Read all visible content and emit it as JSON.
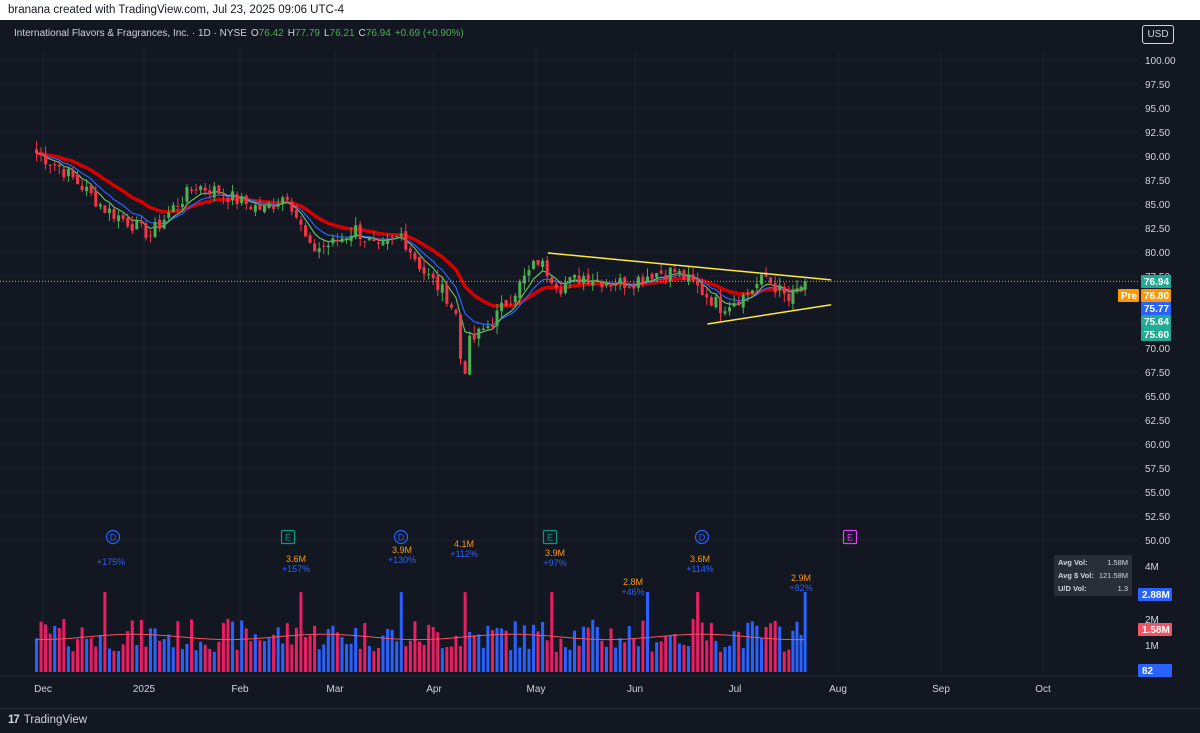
{
  "top_bar": {
    "text": "branana created with TradingView.com, Jul 23, 2025 09:06 UTC-4"
  },
  "footer": {
    "logo_mark": "17",
    "logo_text": "TradingView"
  },
  "currency_button": "USD",
  "header": {
    "symbol": "International Flavors & Fragrances, Inc. · 1D · NYSE",
    "o_label": "O",
    "o_value": "76.42",
    "h_label": "H",
    "h_value": "77.79",
    "l_label": "L",
    "l_value": "76.21",
    "c_label": "C",
    "c_value": "76.94",
    "change": "+0.69 (+0.90%)"
  },
  "price_axis": {
    "ticks": [
      "100.00",
      "97.50",
      "95.00",
      "92.50",
      "90.00",
      "87.50",
      "85.00",
      "82.50",
      "80.00",
      "77.50",
      "72.50",
      "70.00",
      "67.50",
      "65.00",
      "62.50",
      "60.00",
      "57.50",
      "55.00",
      "52.50",
      "50.00"
    ],
    "labels": [
      {
        "text": "76.94",
        "color": "#22ab94",
        "value": 76.94
      },
      {
        "text": "76.80",
        "color": "#ff9800",
        "value": 76.8,
        "tag": "Pre"
      },
      {
        "text": "75.77",
        "color": "#2962ff",
        "value": 75.77
      },
      {
        "text": "75.64",
        "color": "#22ab94",
        "value": 75.64
      },
      {
        "text": "75.60",
        "color": "#22ab94",
        "value": 75.6
      }
    ]
  },
  "volume_axis": {
    "ticks": [
      "4M",
      "2M",
      "1M"
    ],
    "labels": [
      {
        "text": "2.88M",
        "color": "#2962ff"
      },
      {
        "text": "1.58M",
        "color": "#f7525f"
      },
      {
        "text": "82",
        "color": "#2962ff"
      }
    ]
  },
  "time_axis": [
    "Dec",
    "2025",
    "Feb",
    "Mar",
    "Apr",
    "May",
    "Jun",
    "Jul",
    "Aug",
    "Sep",
    "Oct"
  ],
  "stats_box": {
    "rows": [
      {
        "label": "Avg Vol:",
        "value": "1.58M"
      },
      {
        "label": "Avg $ Vol:",
        "value": "121.58M"
      },
      {
        "label": "U/D Vol:",
        "value": "1.3"
      }
    ]
  },
  "events": [
    {
      "type": "D",
      "color": "#2962ff",
      "month": "Dec"
    },
    {
      "type": "E",
      "color": "#089981",
      "month": "Feb"
    },
    {
      "type": "D",
      "color": "#2962ff",
      "month": "Mar"
    },
    {
      "type": "E",
      "color": "#089981",
      "month": "May"
    },
    {
      "type": "D",
      "color": "#2962ff",
      "month": "Jun"
    },
    {
      "type": "E",
      "color": "#e040fb",
      "month": "Aug"
    }
  ],
  "volume_annotations": [
    {
      "vol": "",
      "pct": "+175%"
    },
    {
      "vol": "3.6M",
      "pct": "+157%"
    },
    {
      "vol": "3.9M",
      "pct": "+130%"
    },
    {
      "vol": "4.1M",
      "pct": "+112%"
    },
    {
      "vol": "3.9M",
      "pct": "+97%"
    },
    {
      "vol": "2.8M",
      "pct": "+46%"
    },
    {
      "vol": "3.6M",
      "pct": "+114%"
    },
    {
      "vol": "2.9M",
      "pct": "+82%"
    }
  ],
  "colors": {
    "up": "#4caf50",
    "down": "#f23645",
    "background": "#131722",
    "grid": "#1e222d",
    "trendline": "#ffeb3b",
    "ma_red": "#d50000",
    "ma_blue": "#2962ff",
    "ma_green": "#66bb6a",
    "vol_up": "#2962ff",
    "vol_down": "#e91e63",
    "vol_ma": "#f7525f"
  },
  "chart_data": {
    "type": "candlestick",
    "title": "International Flavors & Fragrances, Inc. · 1D · NYSE",
    "ylim": [
      50,
      100
    ],
    "last_close": 76.94,
    "weekly_closes": [
      {
        "x": "2024-11-29",
        "close": 90.3
      },
      {
        "x": "2024-12-06",
        "close": 88.9
      },
      {
        "x": "2024-12-13",
        "close": 86.8
      },
      {
        "x": "2024-12-20",
        "close": 84.5
      },
      {
        "x": "2024-12-27",
        "close": 83.2
      },
      {
        "x": "2025-01-03",
        "close": 81.8
      },
      {
        "x": "2025-01-10",
        "close": 84.6
      },
      {
        "x": "2025-01-17",
        "close": 86.9
      },
      {
        "x": "2025-01-24",
        "close": 86.3
      },
      {
        "x": "2025-01-31",
        "close": 85.2
      },
      {
        "x": "2025-02-07",
        "close": 84.4
      },
      {
        "x": "2025-02-14",
        "close": 86.1
      },
      {
        "x": "2025-02-21",
        "close": 80.2
      },
      {
        "x": "2025-02-28",
        "close": 80.9
      },
      {
        "x": "2025-03-07",
        "close": 82.4
      },
      {
        "x": "2025-03-14",
        "close": 80.1
      },
      {
        "x": "2025-03-21",
        "close": 81.8
      },
      {
        "x": "2025-03-28",
        "close": 77.9
      },
      {
        "x": "2025-04-04",
        "close": 75.4
      },
      {
        "x": "2025-04-11",
        "close": 70.5
      },
      {
        "x": "2025-04-18",
        "close": 72.8
      },
      {
        "x": "2025-04-25",
        "close": 76.0
      },
      {
        "x": "2025-05-02",
        "close": 79.1
      },
      {
        "x": "2025-05-09",
        "close": 76.4
      },
      {
        "x": "2025-05-16",
        "close": 77.5
      },
      {
        "x": "2025-05-23",
        "close": 76.9
      },
      {
        "x": "2025-05-30",
        "close": 76.8
      },
      {
        "x": "2025-06-06",
        "close": 77.8
      },
      {
        "x": "2025-06-13",
        "close": 78.0
      },
      {
        "x": "2025-06-20",
        "close": 76.3
      },
      {
        "x": "2025-06-27",
        "close": 74.3
      },
      {
        "x": "2025-07-04",
        "close": 75.4
      },
      {
        "x": "2025-07-11",
        "close": 77.4
      },
      {
        "x": "2025-07-18",
        "close": 74.9
      },
      {
        "x": "2025-07-23",
        "close": 76.94
      }
    ],
    "trendlines": [
      {
        "from": {
          "x": "2025-05-05",
          "y": 79.9
        },
        "to": {
          "x": "2025-07-31",
          "y": 77.1
        }
      },
      {
        "from": {
          "x": "2025-06-23",
          "y": 72.5
        },
        "to": {
          "x": "2025-07-31",
          "y": 74.5
        }
      }
    ],
    "volume_ylim": [
      0,
      5000000
    ]
  }
}
